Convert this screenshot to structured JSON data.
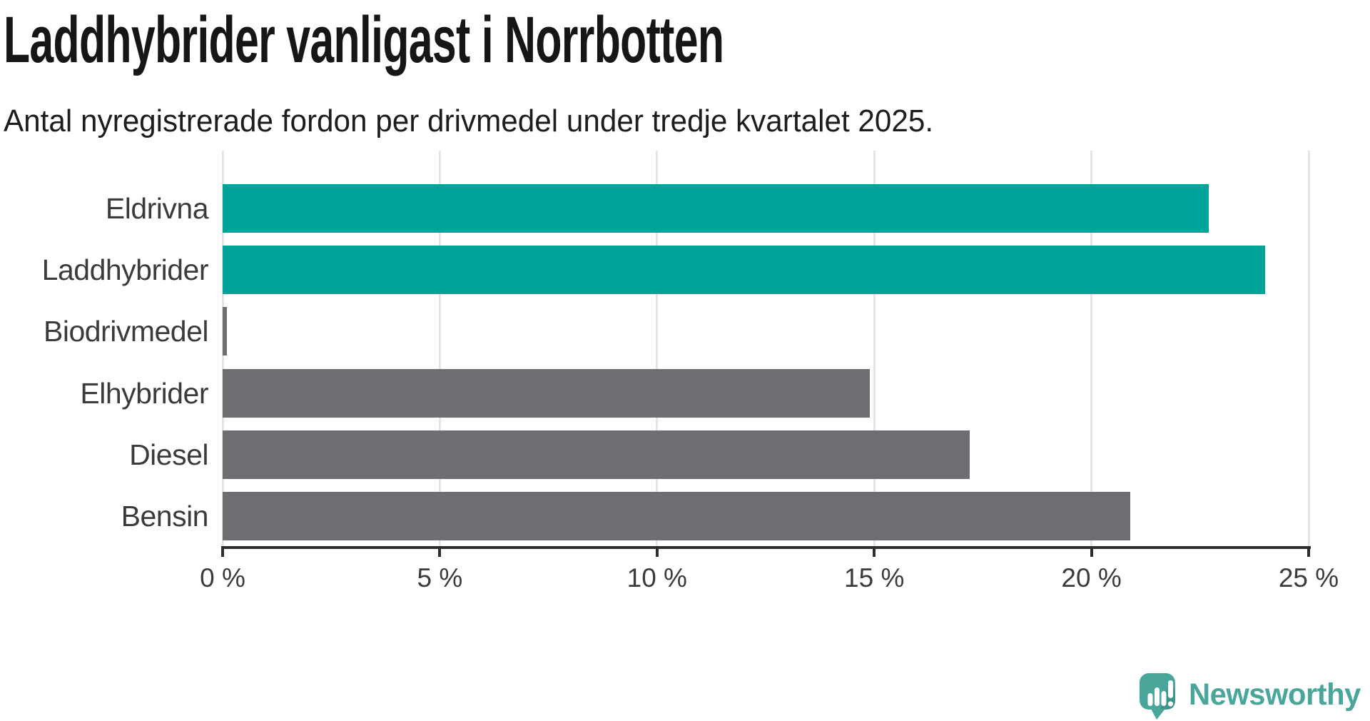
{
  "header": {
    "title": "Laddhybrider vanligast i Norrbotten",
    "subtitle": "Antal nyregistrerade fordon per drivmedel under tredje kvartalet 2025."
  },
  "chart_data": {
    "type": "bar",
    "orientation": "horizontal",
    "title": "Laddhybrider vanligast i Norrbotten",
    "subtitle": "Antal nyregistrerade fordon per drivmedel under tredje kvartalet 2025.",
    "categories": [
      "Eldrivna",
      "Laddhybrider",
      "Biodrivmedel",
      "Elhybrider",
      "Diesel",
      "Bensin"
    ],
    "values": [
      22.7,
      24.0,
      0.1,
      14.9,
      17.2,
      20.9
    ],
    "unit": "%",
    "xlabel": "",
    "ylabel": "",
    "xlim": [
      0,
      25
    ],
    "x_ticks": [
      0,
      5,
      10,
      15,
      20,
      25
    ],
    "x_tick_labels": [
      "0 %",
      "5 %",
      "10 %",
      "15 %",
      "20 %",
      "25 %"
    ],
    "bar_colors": [
      "#00a39a",
      "#00a39a",
      "#6d6d72",
      "#6d6d72",
      "#6d6d72",
      "#6d6d72"
    ],
    "grid": true,
    "legend": "none"
  },
  "colors": {
    "highlight": "#00a39a",
    "neutral_bar": "#6d6d72",
    "gridline": "#e4e4e4",
    "axis": "#2d2d2d",
    "text": "#3b3b3b",
    "brand_teal": "#4aa69b"
  },
  "footer": {
    "brand_name": "Newsworthy",
    "brand_icon": "newsworthy-speech-bubble-barchart-icon"
  }
}
